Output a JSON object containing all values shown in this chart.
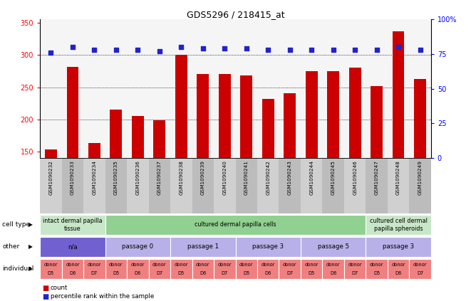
{
  "title": "GDS5296 / 218415_at",
  "samples": [
    "GSM1090232",
    "GSM1090233",
    "GSM1090234",
    "GSM1090235",
    "GSM1090236",
    "GSM1090237",
    "GSM1090238",
    "GSM1090239",
    "GSM1090240",
    "GSM1090241",
    "GSM1090242",
    "GSM1090243",
    "GSM1090244",
    "GSM1090245",
    "GSM1090246",
    "GSM1090247",
    "GSM1090248",
    "GSM1090249"
  ],
  "counts": [
    153,
    281,
    163,
    215,
    205,
    199,
    300,
    271,
    271,
    268,
    232,
    241,
    275,
    275,
    280,
    252,
    337,
    263
  ],
  "percentiles": [
    76,
    80,
    78,
    78,
    78,
    77,
    80,
    79,
    79,
    79,
    78,
    78,
    78,
    78,
    78,
    78,
    80,
    78
  ],
  "ylim_left": [
    140,
    355
  ],
  "ylim_right": [
    0,
    100
  ],
  "yticks_left": [
    150,
    200,
    250,
    300,
    350
  ],
  "yticks_right": [
    0,
    25,
    50,
    75,
    100
  ],
  "bar_color": "#cc0000",
  "dot_color": "#2222cc",
  "grid_lines": [
    200,
    250,
    300
  ],
  "chart_bg": "#f5f5f5",
  "col_colors": [
    "#d0d0d0",
    "#bcbcbc"
  ],
  "cell_type_row": {
    "groups": [
      {
        "label": "intact dermal papilla\ntissue",
        "start": 0,
        "end": 3,
        "color": "#c8e6c8"
      },
      {
        "label": "cultured dermal papilla cells",
        "start": 3,
        "end": 15,
        "color": "#90d090"
      },
      {
        "label": "cultured cell dermal\npapilla spheroids",
        "start": 15,
        "end": 18,
        "color": "#c8e6c8"
      }
    ]
  },
  "other_row": {
    "groups": [
      {
        "label": "n/a",
        "start": 0,
        "end": 3,
        "color": "#7060d0"
      },
      {
        "label": "passage 0",
        "start": 3,
        "end": 6,
        "color": "#b8b0e8"
      },
      {
        "label": "passage 1",
        "start": 6,
        "end": 9,
        "color": "#b8b0e8"
      },
      {
        "label": "passage 3",
        "start": 9,
        "end": 12,
        "color": "#b8b0e8"
      },
      {
        "label": "passage 5",
        "start": 12,
        "end": 15,
        "color": "#b8b0e8"
      },
      {
        "label": "passage 3",
        "start": 15,
        "end": 18,
        "color": "#b8b0e8"
      }
    ]
  },
  "individual_row": {
    "donors": [
      "D5",
      "D6",
      "D7",
      "D5",
      "D6",
      "D7",
      "D5",
      "D6",
      "D7",
      "D5",
      "D6",
      "D7",
      "D5",
      "D6",
      "D7",
      "D5",
      "D6",
      "D7"
    ],
    "color": "#f08080"
  },
  "legend": [
    {
      "label": "count",
      "color": "#cc0000"
    },
    {
      "label": "percentile rank within the sample",
      "color": "#2222cc"
    }
  ]
}
